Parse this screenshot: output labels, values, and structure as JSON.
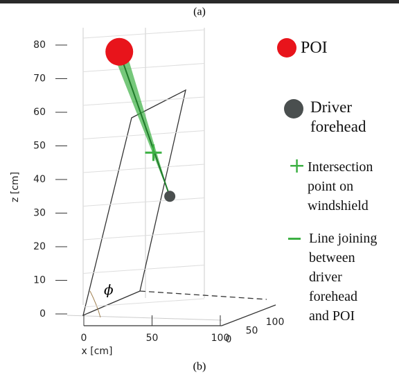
{
  "chart_data": {
    "type": "scatter3d",
    "caption_top": "(a)",
    "caption_bottom": "(b)",
    "xlabel": "x [cm]",
    "zlabel": "z [cm]",
    "angle_label": "ϕ",
    "xlim": [
      0,
      100
    ],
    "xticks": [
      0,
      50,
      100
    ],
    "ylim": [
      0,
      100
    ],
    "yticks": [
      0,
      50,
      100
    ],
    "zlim": [
      0,
      80
    ],
    "zticks": [
      0,
      10,
      20,
      30,
      40,
      50,
      60,
      70,
      80
    ],
    "series": [
      {
        "name": "POI",
        "color": "#e8141b",
        "x": [
          26
        ],
        "y": [
          50
        ],
        "z": [
          78
        ]
      },
      {
        "name": "Driver forehead",
        "color": "#4a4f4f",
        "x": [
          63
        ],
        "y": [
          50
        ],
        "z": [
          35
        ]
      },
      {
        "name": "Intersection point on windshield",
        "color": "#3cb043",
        "x": [
          51
        ],
        "y": [
          50
        ],
        "z": [
          48
        ]
      }
    ],
    "line_name": "Line joining between driver forehead and POI",
    "line_color": "#3cb043"
  }
}
